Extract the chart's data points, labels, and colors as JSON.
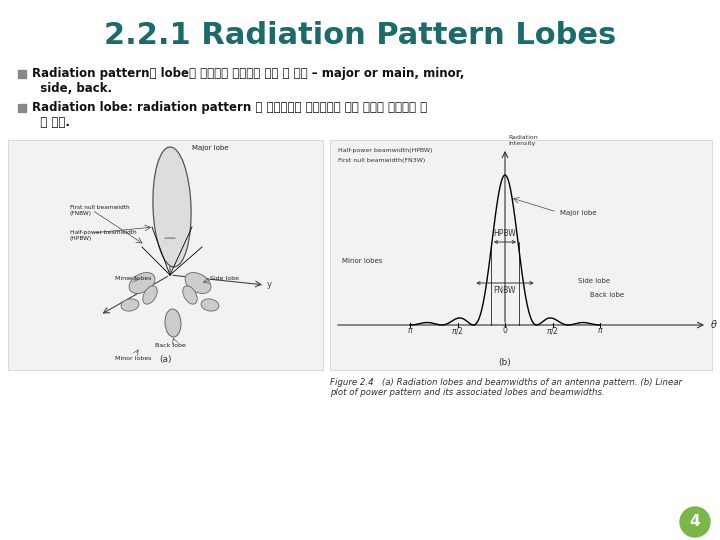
{
  "title": "2.2.1 Radiation Pattern Lobes",
  "title_color": "#1B6B6B",
  "title_fontsize": 22,
  "title_fontweight": "bold",
  "bg_color": "#FFFFFF",
  "border_color": "#BBBBBB",
  "bullet_color": "#888888",
  "bullet1_line1": "Radiation pattern은 lobe라 불리우는 부분으로 나눔 수 있다 – major or main, minor,",
  "bullet1_line2": "  side, back.",
  "bullet2_line1": "Radiation lobe: radiation pattern 중 방사세기가 상대적으로 약한 부분에 둘러싸여 있",
  "bullet2_line2": "  는 부분.",
  "page_num": "4",
  "page_circle_color": "#7AB648",
  "page_num_color": "#FFFFFF",
  "fig_caption": "Figure 2.4   (a) Radiation lobes and beamwidths of an antenna pattern. (b) Linear\nplot of power pattern and its associated lobes and beamwidths."
}
